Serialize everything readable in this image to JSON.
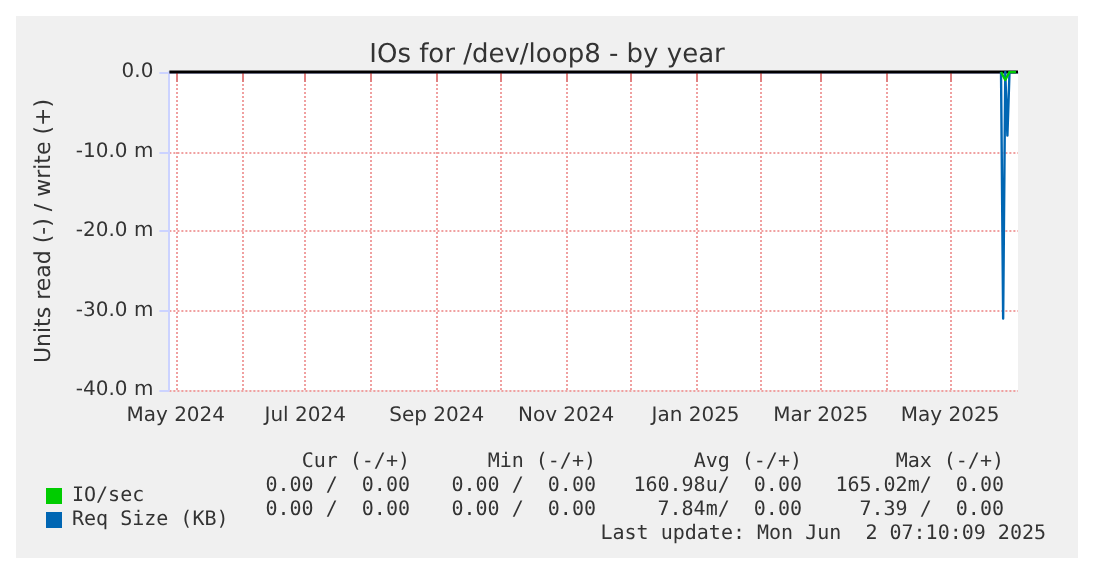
{
  "chart_data": {
    "type": "line",
    "title": "IOs for /dev/loop8 - by year",
    "ylabel": "Units read (-) / write (+)",
    "xlim": [
      "2024-04-28",
      "2025-06-02"
    ],
    "xticks": [
      {
        "value": "2024-05-01",
        "label": "May 2024"
      },
      {
        "value": "2024-06-01",
        "label": null
      },
      {
        "value": "2024-07-01",
        "label": "Jul 2024"
      },
      {
        "value": "2024-08-01",
        "label": null
      },
      {
        "value": "2024-09-01",
        "label": "Sep 2024"
      },
      {
        "value": "2024-10-01",
        "label": null
      },
      {
        "value": "2024-11-01",
        "label": "Nov 2024"
      },
      {
        "value": "2024-12-01",
        "label": null
      },
      {
        "value": "2025-01-01",
        "label": "Jan 2025"
      },
      {
        "value": "2025-02-01",
        "label": null
      },
      {
        "value": "2025-03-01",
        "label": "Mar 2025"
      },
      {
        "value": "2025-04-01",
        "label": null
      },
      {
        "value": "2025-05-01",
        "label": "May 2025"
      }
    ],
    "ylim": [
      -40,
      0
    ],
    "yticks": [
      {
        "value": -40,
        "label": "-40.0 m"
      },
      {
        "value": -30,
        "label": "-30.0 m"
      },
      {
        "value": -20,
        "label": "-20.0 m"
      },
      {
        "value": -10,
        "label": "-10.0 m"
      },
      {
        "value": 0,
        "label": "0.0"
      }
    ],
    "grid": true,
    "legend": "bottom left",
    "ref_lines": [
      {
        "axis": "y",
        "value": 0,
        "color": "#000000"
      }
    ],
    "series": [
      {
        "name": "IO/sec",
        "color": "#00cc00",
        "x": [
          "2025-05-25",
          "2025-05-27",
          "2025-05-29",
          "2025-06-01"
        ],
        "values": [
          0,
          -1,
          0,
          0
        ]
      },
      {
        "name": "Req Size (KB)",
        "color": "#0066b3",
        "x": [
          "2025-05-25",
          "2025-05-26",
          "2025-05-27",
          "2025-05-28",
          "2025-05-29",
          "2025-06-01"
        ],
        "values": [
          0,
          -31,
          0,
          -8,
          0,
          0
        ]
      }
    ],
    "annotations": [
      "Cur (-/+)",
      "Min (-/+)",
      "Avg (-/+)",
      "Max (-/+)",
      "0.00 /  0.00",
      "0.00 /  0.00",
      "160.98u/  0.00",
      "165.02m/  0.00",
      "0.00 /  0.00",
      "0.00 /  0.00",
      "7.84m/  0.00",
      "7.39 /  0.00",
      "Last update: Mon Jun  2 07:10:09 2025"
    ]
  }
}
